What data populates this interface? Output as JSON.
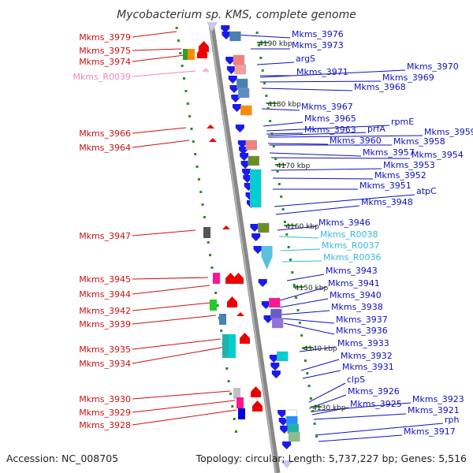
{
  "title": "Mycobacterium sp. KMS, complete genome",
  "footer": {
    "accession": "Accession: NC_008705",
    "topology": "Topology: circular; Length: 5,737,227 bp; Genes: 5,516"
  },
  "colors": {
    "left_label": "#cc1111",
    "right_label": "#1111bb",
    "rna_label_pink": "#ee88bb",
    "rna_label_cyan": "#33bbdd",
    "backbone": "#888888",
    "tick": "#2a8a2a"
  },
  "kbp_marks": [
    "4190 kbp",
    "4180 kbp",
    "4170 kbp",
    "4160 kbp",
    "4150 kbp",
    "4140 kbp",
    "4130 kbp"
  ],
  "left_labels": [
    {
      "text": "Mkms_3979",
      "kind": "gene"
    },
    {
      "text": "Mkms_3975",
      "kind": "gene"
    },
    {
      "text": "Mkms_3974",
      "kind": "gene"
    },
    {
      "text": "Mkms_R0039",
      "kind": "rna-pink"
    },
    {
      "text": "Mkms_3966",
      "kind": "gene"
    },
    {
      "text": "Mkms_3964",
      "kind": "gene"
    },
    {
      "text": "Mkms_3947",
      "kind": "gene"
    },
    {
      "text": "Mkms_3945",
      "kind": "gene"
    },
    {
      "text": "Mkms_3944",
      "kind": "gene"
    },
    {
      "text": "Mkms_3942",
      "kind": "gene"
    },
    {
      "text": "Mkms_3939",
      "kind": "gene"
    },
    {
      "text": "Mkms_3935",
      "kind": "gene"
    },
    {
      "text": "Mkms_3934",
      "kind": "gene"
    },
    {
      "text": "Mkms_3930",
      "kind": "gene"
    },
    {
      "text": "Mkms_3929",
      "kind": "gene"
    },
    {
      "text": "Mkms_3928",
      "kind": "gene"
    }
  ],
  "right_labels": [
    {
      "text": "Mkms_3976",
      "kind": "gene"
    },
    {
      "text": "Mkms_3973",
      "kind": "gene"
    },
    {
      "text": "argS",
      "kind": "gene"
    },
    {
      "text": "Mkms_3970",
      "kind": "gene"
    },
    {
      "text": "Mkms_3971",
      "kind": "gene"
    },
    {
      "text": "Mkms_3969",
      "kind": "gene"
    },
    {
      "text": "Mkms_3968",
      "kind": "gene"
    },
    {
      "text": "Mkms_3967",
      "kind": "gene"
    },
    {
      "text": "Mkms_3965",
      "kind": "gene"
    },
    {
      "text": "rpmE",
      "kind": "gene"
    },
    {
      "text": "Mkms_3963",
      "kind": "gene"
    },
    {
      "text": "prfA",
      "kind": "gene"
    },
    {
      "text": "Mkms_3959",
      "kind": "gene"
    },
    {
      "text": "Mkms_3960",
      "kind": "gene"
    },
    {
      "text": "Mkms_3958",
      "kind": "gene"
    },
    {
      "text": "Mkms_3957",
      "kind": "gene"
    },
    {
      "text": "Mkms_3954",
      "kind": "gene"
    },
    {
      "text": "Mkms_3953",
      "kind": "gene"
    },
    {
      "text": "Mkms_3952",
      "kind": "gene"
    },
    {
      "text": "Mkms_3951",
      "kind": "gene"
    },
    {
      "text": "atpC",
      "kind": "gene"
    },
    {
      "text": "Mkms_3948",
      "kind": "gene"
    },
    {
      "text": "Mkms_3946",
      "kind": "gene"
    },
    {
      "text": "Mkms_R0038",
      "kind": "rna-cyan"
    },
    {
      "text": "Mkms_R0037",
      "kind": "rna-cyan"
    },
    {
      "text": "Mkms_R0036",
      "kind": "rna-cyan"
    },
    {
      "text": "Mkms_3943",
      "kind": "gene"
    },
    {
      "text": "Mkms_3941",
      "kind": "gene"
    },
    {
      "text": "Mkms_3940",
      "kind": "gene"
    },
    {
      "text": "Mkms_3938",
      "kind": "gene"
    },
    {
      "text": "Mkms_3937",
      "kind": "gene"
    },
    {
      "text": "Mkms_3936",
      "kind": "gene"
    },
    {
      "text": "Mkms_3933",
      "kind": "gene"
    },
    {
      "text": "Mkms_3932",
      "kind": "gene"
    },
    {
      "text": "Mkms_3931",
      "kind": "gene"
    },
    {
      "text": "clpS",
      "kind": "gene"
    },
    {
      "text": "Mkms_3926",
      "kind": "gene"
    },
    {
      "text": "Mkms_3923",
      "kind": "gene"
    },
    {
      "text": "Mkms_3925",
      "kind": "gene"
    },
    {
      "text": "Mkms_3921",
      "kind": "gene"
    },
    {
      "text": "rph",
      "kind": "gene"
    },
    {
      "text": "Mkms_3917",
      "kind": "gene"
    }
  ],
  "left_features": [
    {
      "shape": "box",
      "color": "#2ca02c"
    },
    {
      "shape": "box",
      "color": "#ff8c00"
    },
    {
      "shape": "arrow-up",
      "color": "#ee0000"
    },
    {
      "shape": "arrow-up",
      "color": "#ee0000"
    },
    {
      "shape": "tri",
      "color": "#ffaadd"
    },
    {
      "shape": "tri",
      "color": "#ee0000"
    },
    {
      "shape": "tri",
      "color": "#ee0000"
    },
    {
      "shape": "box",
      "color": "#555555"
    },
    {
      "shape": "tri",
      "color": "#ee0000"
    },
    {
      "shape": "box",
      "color": "#ff1493"
    },
    {
      "shape": "arrow-up",
      "color": "#ee0000"
    },
    {
      "shape": "arrow-up",
      "color": "#ee0000"
    },
    {
      "shape": "box",
      "color": "#22cc22"
    },
    {
      "shape": "arrow-up",
      "color": "#ee0000"
    },
    {
      "shape": "box",
      "color": "#4682b4"
    },
    {
      "shape": "tri",
      "color": "#ee0000"
    },
    {
      "shape": "box",
      "color": "#20b2aa"
    },
    {
      "shape": "box",
      "color": "#00ced1"
    },
    {
      "shape": "arrow-up",
      "color": "#ee0000"
    },
    {
      "shape": "box",
      "color": "#c0c0c0"
    },
    {
      "shape": "box",
      "color": "#ff1493"
    },
    {
      "shape": "box",
      "color": "#0000dd"
    },
    {
      "shape": "arrow-up",
      "color": "#ee0000"
    },
    {
      "shape": "arrow-up",
      "color": "#ee0000"
    }
  ],
  "right_features": [
    {
      "shape": "box",
      "color": "#4682b4"
    },
    {
      "shape": "box",
      "color": "#f08080"
    },
    {
      "shape": "box",
      "color": "#f4a0a0"
    },
    {
      "shape": "box",
      "color": "#4682b4"
    },
    {
      "shape": "box",
      "color": "#5b8fc4"
    },
    {
      "shape": "box",
      "color": "#ff8c00"
    },
    {
      "shape": "box",
      "color": "#f08080"
    },
    {
      "shape": "box",
      "color": "#6b8e23"
    },
    {
      "shape": "box",
      "color": "#00ced1"
    },
    {
      "shape": "box",
      "color": "#6b8e23"
    },
    {
      "shape": "arrow-down",
      "color": "#5bc0de"
    },
    {
      "shape": "box",
      "color": "#ff1493"
    },
    {
      "shape": "box",
      "color": "#6a5acd"
    },
    {
      "shape": "box",
      "color": "#9370db"
    },
    {
      "shape": "box",
      "color": "#00ced1"
    },
    {
      "shape": "box",
      "color": "#ffffff"
    },
    {
      "shape": "box",
      "color": "#1e90ff"
    },
    {
      "shape": "box",
      "color": "#20b2aa"
    },
    {
      "shape": "box",
      "color": "#8fbc8f"
    }
  ]
}
